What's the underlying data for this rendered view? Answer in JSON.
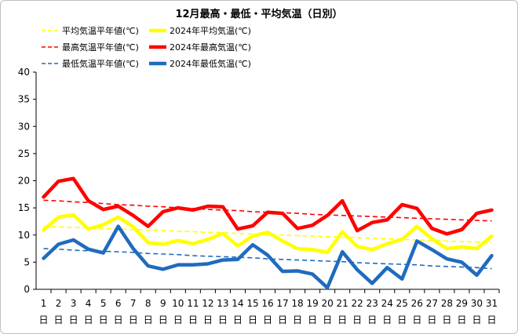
{
  "chart_data": {
    "type": "line",
    "title": "12月最高・最低・平均気温（日別）",
    "x": [
      "1",
      "2",
      "3",
      "4",
      "5",
      "6",
      "7",
      "8",
      "9",
      "10",
      "11",
      "12",
      "13",
      "14",
      "15",
      "16",
      "17",
      "18",
      "19",
      "20",
      "21",
      "22",
      "23",
      "24",
      "25",
      "26",
      "27",
      "28",
      "29",
      "30",
      "31"
    ],
    "x_suffix": "日",
    "ylim": [
      0,
      40
    ],
    "yticks": [
      "0",
      "5",
      "10",
      "15",
      "20",
      "25",
      "30",
      "35",
      "40"
    ],
    "grid": false,
    "legend_position": "top",
    "series": [
      {
        "name": "平均気温平年値(℃)",
        "color": "#ffff00",
        "style": "dashed",
        "values": [
          11.6,
          11.5,
          11.4,
          11.3,
          11.2,
          11.1,
          11.0,
          10.9,
          10.8,
          10.7,
          10.6,
          10.5,
          10.4,
          10.3,
          10.2,
          10.1,
          10.0,
          9.9,
          9.8,
          9.7,
          9.6,
          9.5,
          9.4,
          9.3,
          9.2,
          9.1,
          9.0,
          8.9,
          8.8,
          8.7,
          8.6
        ]
      },
      {
        "name": "2024年平均気温(℃)",
        "color": "#ffff00",
        "style": "solid",
        "values": [
          10.9,
          13.3,
          13.7,
          11.1,
          11.9,
          13.3,
          11.5,
          8.6,
          8.3,
          9.0,
          8.4,
          9.2,
          10.3,
          8.0,
          9.8,
          10.5,
          8.9,
          7.5,
          7.3,
          6.8,
          10.6,
          7.9,
          7.3,
          8.4,
          9.2,
          11.6,
          9.3,
          7.5,
          7.8,
          7.5,
          9.8
        ]
      },
      {
        "name": "最高気温平年値(℃)",
        "color": "#ff0000",
        "style": "dashed",
        "values": [
          16.4,
          16.3,
          16.1,
          16.0,
          15.8,
          15.6,
          15.5,
          15.3,
          15.2,
          15.0,
          14.9,
          14.7,
          14.6,
          14.5,
          14.3,
          14.2,
          14.1,
          14.0,
          13.8,
          13.7,
          13.6,
          13.5,
          13.4,
          13.3,
          13.2,
          13.1,
          13.0,
          12.9,
          12.8,
          12.7,
          12.6
        ]
      },
      {
        "name": "2024年最高気温(℃)",
        "color": "#ff0000",
        "style": "solid",
        "values": [
          17.0,
          19.9,
          20.4,
          16.3,
          14.7,
          15.3,
          13.6,
          11.6,
          14.3,
          15.0,
          14.6,
          15.3,
          15.2,
          11.1,
          11.7,
          14.2,
          14.0,
          11.2,
          11.8,
          13.6,
          16.3,
          10.8,
          12.3,
          12.8,
          15.6,
          14.9,
          11.2,
          10.2,
          11.0,
          14.0,
          14.6
        ]
      },
      {
        "name": "最低気温平年値(℃)",
        "color": "#1f6bbf",
        "style": "dashed",
        "values": [
          7.5,
          7.4,
          7.2,
          7.1,
          7.0,
          6.9,
          6.8,
          6.6,
          6.5,
          6.4,
          6.2,
          6.1,
          6.0,
          5.9,
          5.8,
          5.6,
          5.5,
          5.4,
          5.3,
          5.2,
          5.1,
          4.9,
          4.8,
          4.7,
          4.6,
          4.5,
          4.3,
          4.2,
          4.1,
          4.0,
          3.8
        ]
      },
      {
        "name": "2024年最低気温(℃)",
        "color": "#1f6bbf",
        "style": "solid",
        "values": [
          5.7,
          8.3,
          9.1,
          7.4,
          6.7,
          11.6,
          7.5,
          4.3,
          3.7,
          4.5,
          4.5,
          4.7,
          5.4,
          5.5,
          8.2,
          6.3,
          3.3,
          3.4,
          2.8,
          0.3,
          6.9,
          3.6,
          1.1,
          4.0,
          1.9,
          8.9,
          7.3,
          5.6,
          5.0,
          2.6,
          6.2
        ]
      }
    ]
  }
}
